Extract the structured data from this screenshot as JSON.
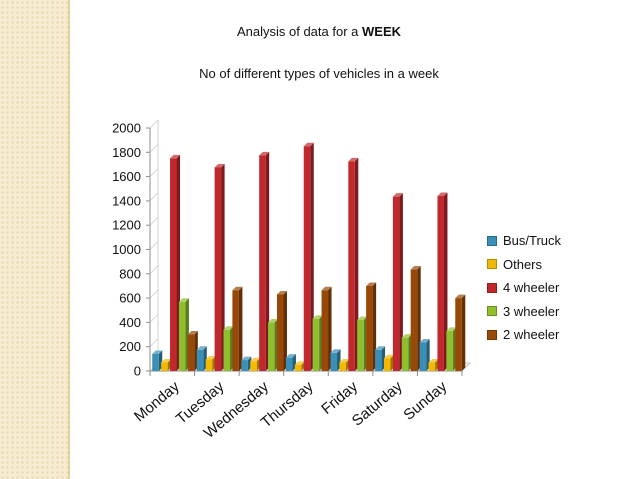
{
  "page": {
    "heading_prefix": "Analysis of data for a ",
    "heading_bold": "WEEK",
    "subheading": "No of different types of vehicles in a week"
  },
  "chart_data": {
    "type": "bar",
    "title": "Analysis of data for a WEEK",
    "subtitle": "No of different types of vehicles in a week",
    "xlabel": "",
    "ylabel": "",
    "ylim": [
      0,
      2000
    ],
    "yticks": [
      0,
      200,
      400,
      600,
      800,
      1000,
      1200,
      1400,
      1600,
      1800,
      2000
    ],
    "grid": false,
    "legend": "right",
    "style": "3d-clustered-column",
    "categories": [
      "Monday",
      "Tuesday",
      "Wednesday",
      "Thursday",
      "Friday",
      "Saturday",
      "Sunday"
    ],
    "series": [
      {
        "name": "Bus/Truck",
        "color": "#3a8fb7",
        "values": [
          140,
          175,
          90,
          110,
          150,
          175,
          235
        ]
      },
      {
        "name": "Others",
        "color": "#f3b800",
        "values": [
          70,
          95,
          80,
          50,
          70,
          105,
          70
        ]
      },
      {
        "name": "4 wheeler",
        "color": "#c0282d",
        "values": [
          1750,
          1675,
          1775,
          1850,
          1725,
          1435,
          1440
        ]
      },
      {
        "name": "3 wheeler",
        "color": "#8fbe2e",
        "values": [
          570,
          340,
          400,
          430,
          420,
          275,
          330
        ]
      },
      {
        "name": "2 wheeler",
        "color": "#984807",
        "values": [
          300,
          665,
          630,
          665,
          700,
          835,
          600
        ]
      }
    ]
  }
}
